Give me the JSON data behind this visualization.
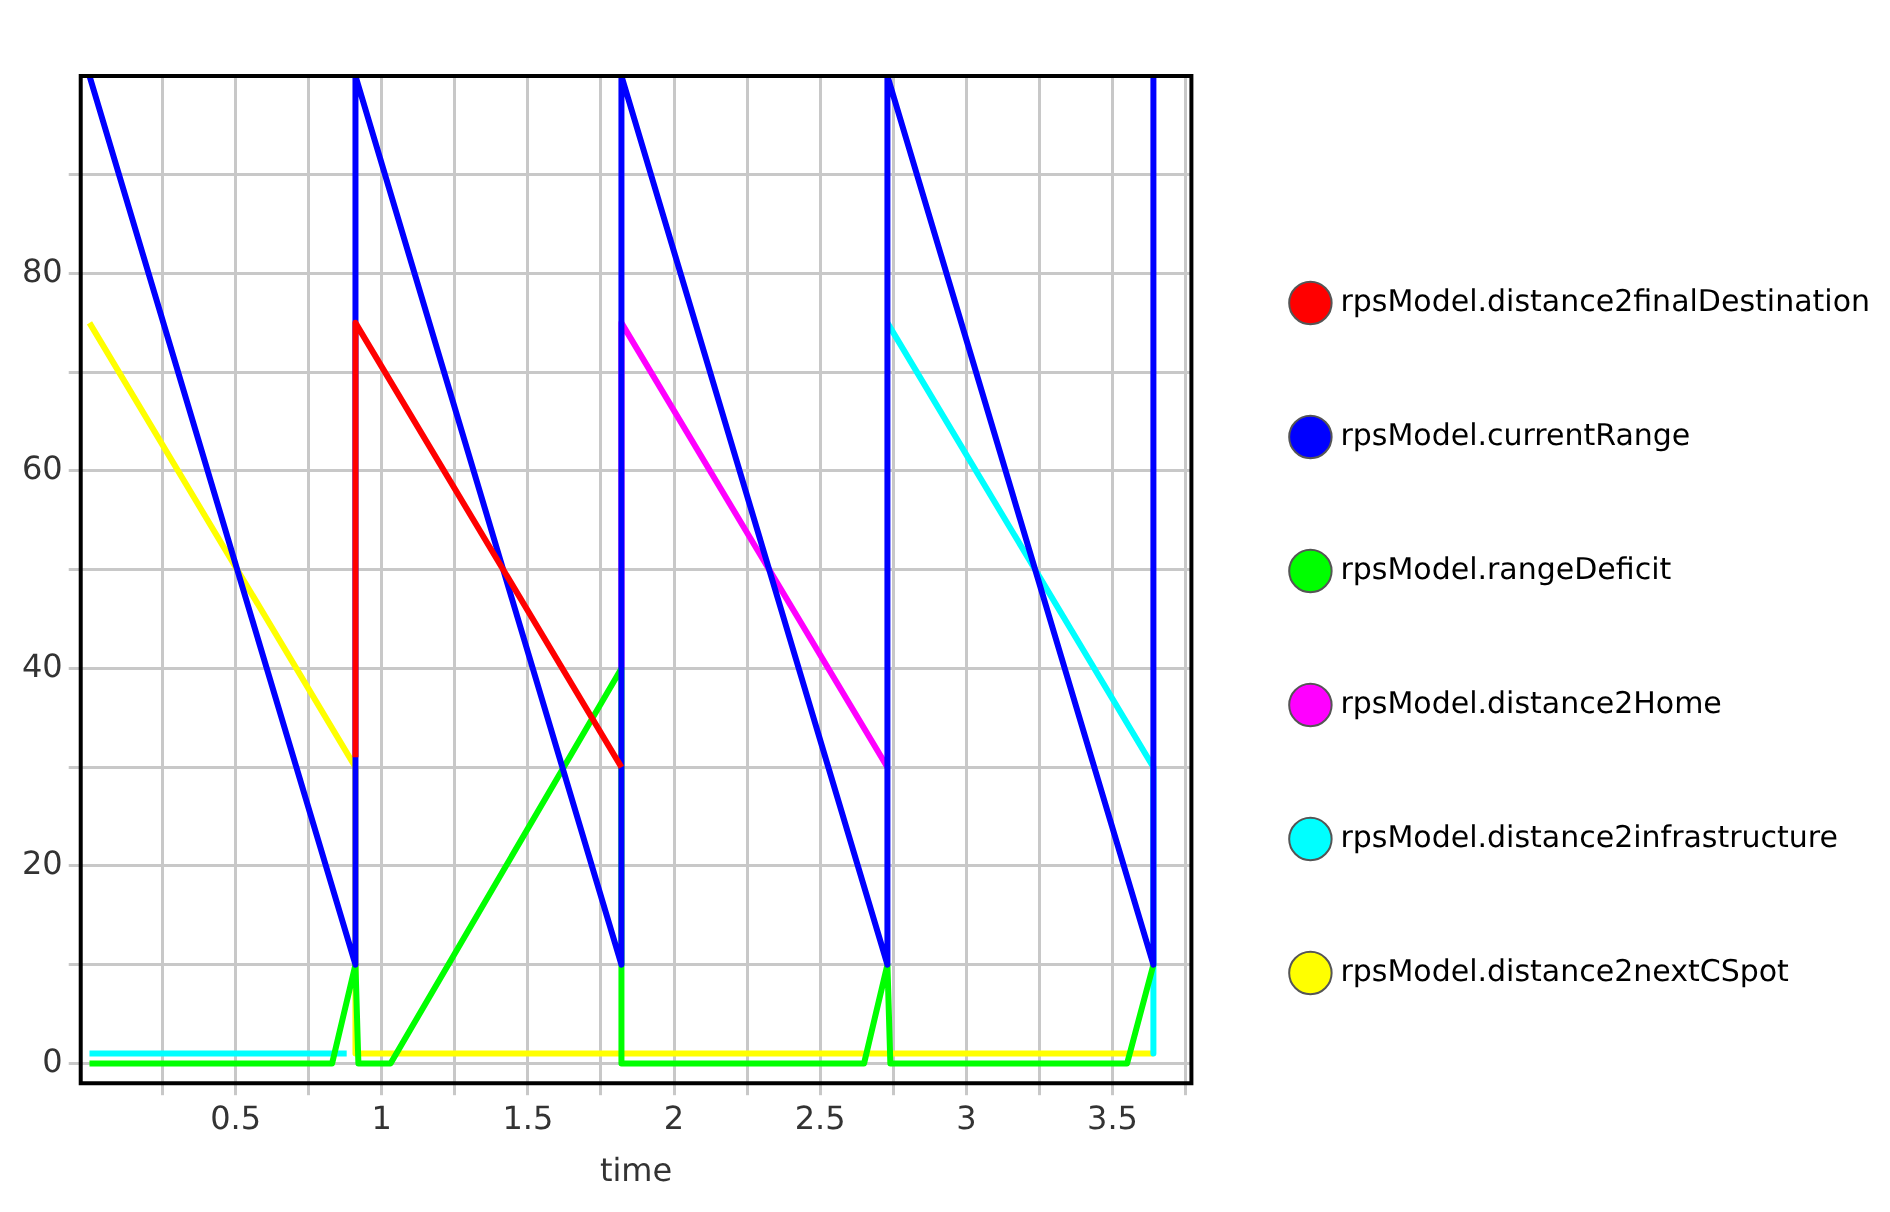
{
  "chart_data": {
    "type": "line",
    "xlabel": "time",
    "xlim": [
      -0.03,
      3.77
    ],
    "ylim": [
      -2,
      100
    ],
    "xticks": [
      {
        "value": 0.25,
        "label": null
      },
      0.5,
      {
        "value": 0.75,
        "label": null
      },
      1,
      {
        "value": 1.25,
        "label": null
      },
      1.5,
      {
        "value": 1.75,
        "label": null
      },
      2,
      {
        "value": 2.25,
        "label": null
      },
      2.5,
      {
        "value": 2.75,
        "label": null
      },
      3,
      {
        "value": 3.25,
        "label": null
      },
      3.5,
      {
        "value": 3.75,
        "label": null
      }
    ],
    "yticks": [
      0,
      {
        "value": 10,
        "label": null
      },
      20,
      {
        "value": 30,
        "label": null
      },
      40,
      {
        "value": 50,
        "label": null
      },
      60,
      {
        "value": 70,
        "label": null
      },
      80,
      {
        "value": 90,
        "label": null
      }
    ],
    "grid": true,
    "legend": "right",
    "marker": "none",
    "line_style": "solid",
    "series": [
      {
        "name": "rpsModel.distance2finalDestination",
        "color": "#ff0000",
        "x": [
          0.91,
          0.91,
          1.82
        ],
        "values": [
          31,
          75,
          30
        ]
      },
      {
        "name": "rpsModel.currentRange",
        "color": "#0000ff",
        "x": [
          0,
          0.91,
          0.91,
          1.82,
          1.82,
          2.73,
          2.73,
          3.64,
          3.64
        ],
        "values": [
          100,
          10,
          100,
          10,
          100,
          10,
          100,
          10,
          100
        ]
      },
      {
        "name": "rpsModel.rangeDeficit",
        "color": "#00ff00",
        "x": [
          0,
          0.83,
          0.91,
          0.92,
          1.03,
          1.82,
          1.82,
          2.65,
          2.73,
          2.74,
          3.55,
          3.64
        ],
        "values": [
          0,
          0,
          10,
          0,
          0,
          40,
          0,
          0,
          10,
          0,
          0,
          10
        ]
      },
      {
        "name": "rpsModel.distance2Home",
        "color": "#ff00ff",
        "x": [
          1.82,
          1.82,
          2.73
        ],
        "values": [
          40,
          75,
          30
        ]
      },
      {
        "name": "rpsModel.distance2infrastructure",
        "color": "#00ffff",
        "x": [
          0,
          0.88,
          null,
          2.73,
          3.64,
          3.64
        ],
        "values": [
          1,
          1,
          null,
          75,
          30,
          1
        ]
      },
      {
        "name": "rpsModel.distance2nextCSpot",
        "color": "#ffff00",
        "x": [
          0,
          0.91,
          0.91,
          3.64
        ],
        "values": [
          75,
          30,
          1,
          1
        ]
      }
    ]
  }
}
